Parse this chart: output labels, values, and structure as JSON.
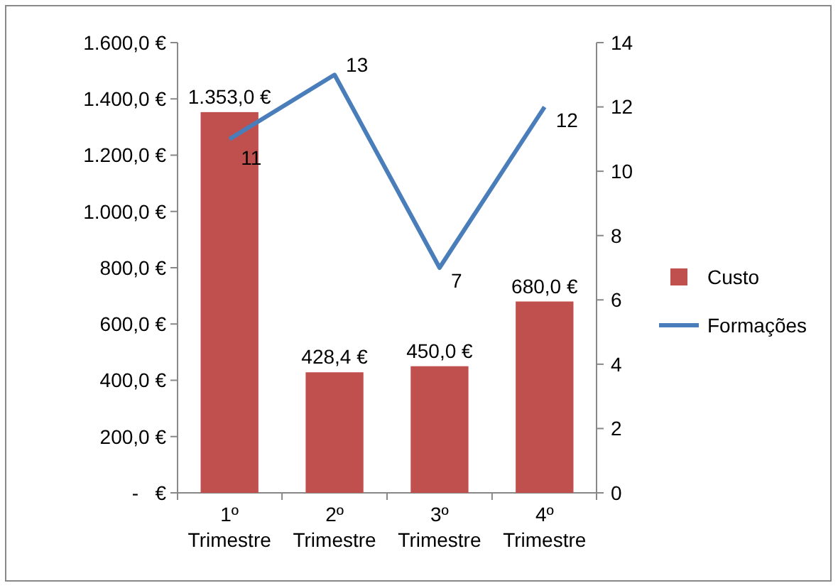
{
  "chart_data": {
    "type": "bar",
    "categories": [
      "1º Trimestre",
      "2º Trimestre",
      "3º Trimestre",
      "4º Trimestre"
    ],
    "series": [
      {
        "name": "Custo",
        "color": "#c0504d",
        "values": [
          1353,
          428.4,
          450,
          680
        ],
        "value_labels": [
          "1.353,0 €",
          "428,4 €",
          "450,0 €",
          "680,0 €"
        ]
      },
      {
        "name": "Formações",
        "type": "line",
        "axis": "y2",
        "color": "#4a7ebb",
        "values": [
          11,
          13,
          7,
          12
        ],
        "value_labels": [
          "11",
          "13",
          "7",
          "12"
        ],
        "marker": "none"
      }
    ],
    "ylim": [
      0,
      1600
    ],
    "yticks": [
      {
        "value": 0,
        "label": "-   €"
      },
      {
        "value": 200,
        "label": "200,0 €"
      },
      {
        "value": 400,
        "label": "400,0 €"
      },
      {
        "value": 600,
        "label": "600,0 €"
      },
      {
        "value": 800,
        "label": "800,0 €"
      },
      {
        "value": 1000,
        "label": "1.000,0 €"
      },
      {
        "value": 1200,
        "label": "1.200,0 €"
      },
      {
        "value": 1400,
        "label": "1.400,0 €"
      },
      {
        "value": 1600,
        "label": "1.600,0 €"
      }
    ],
    "y2lim": [
      0,
      14
    ],
    "y2ticks": [
      0,
      2,
      4,
      6,
      8,
      10,
      12,
      14
    ],
    "legend": "right",
    "grid": false
  }
}
